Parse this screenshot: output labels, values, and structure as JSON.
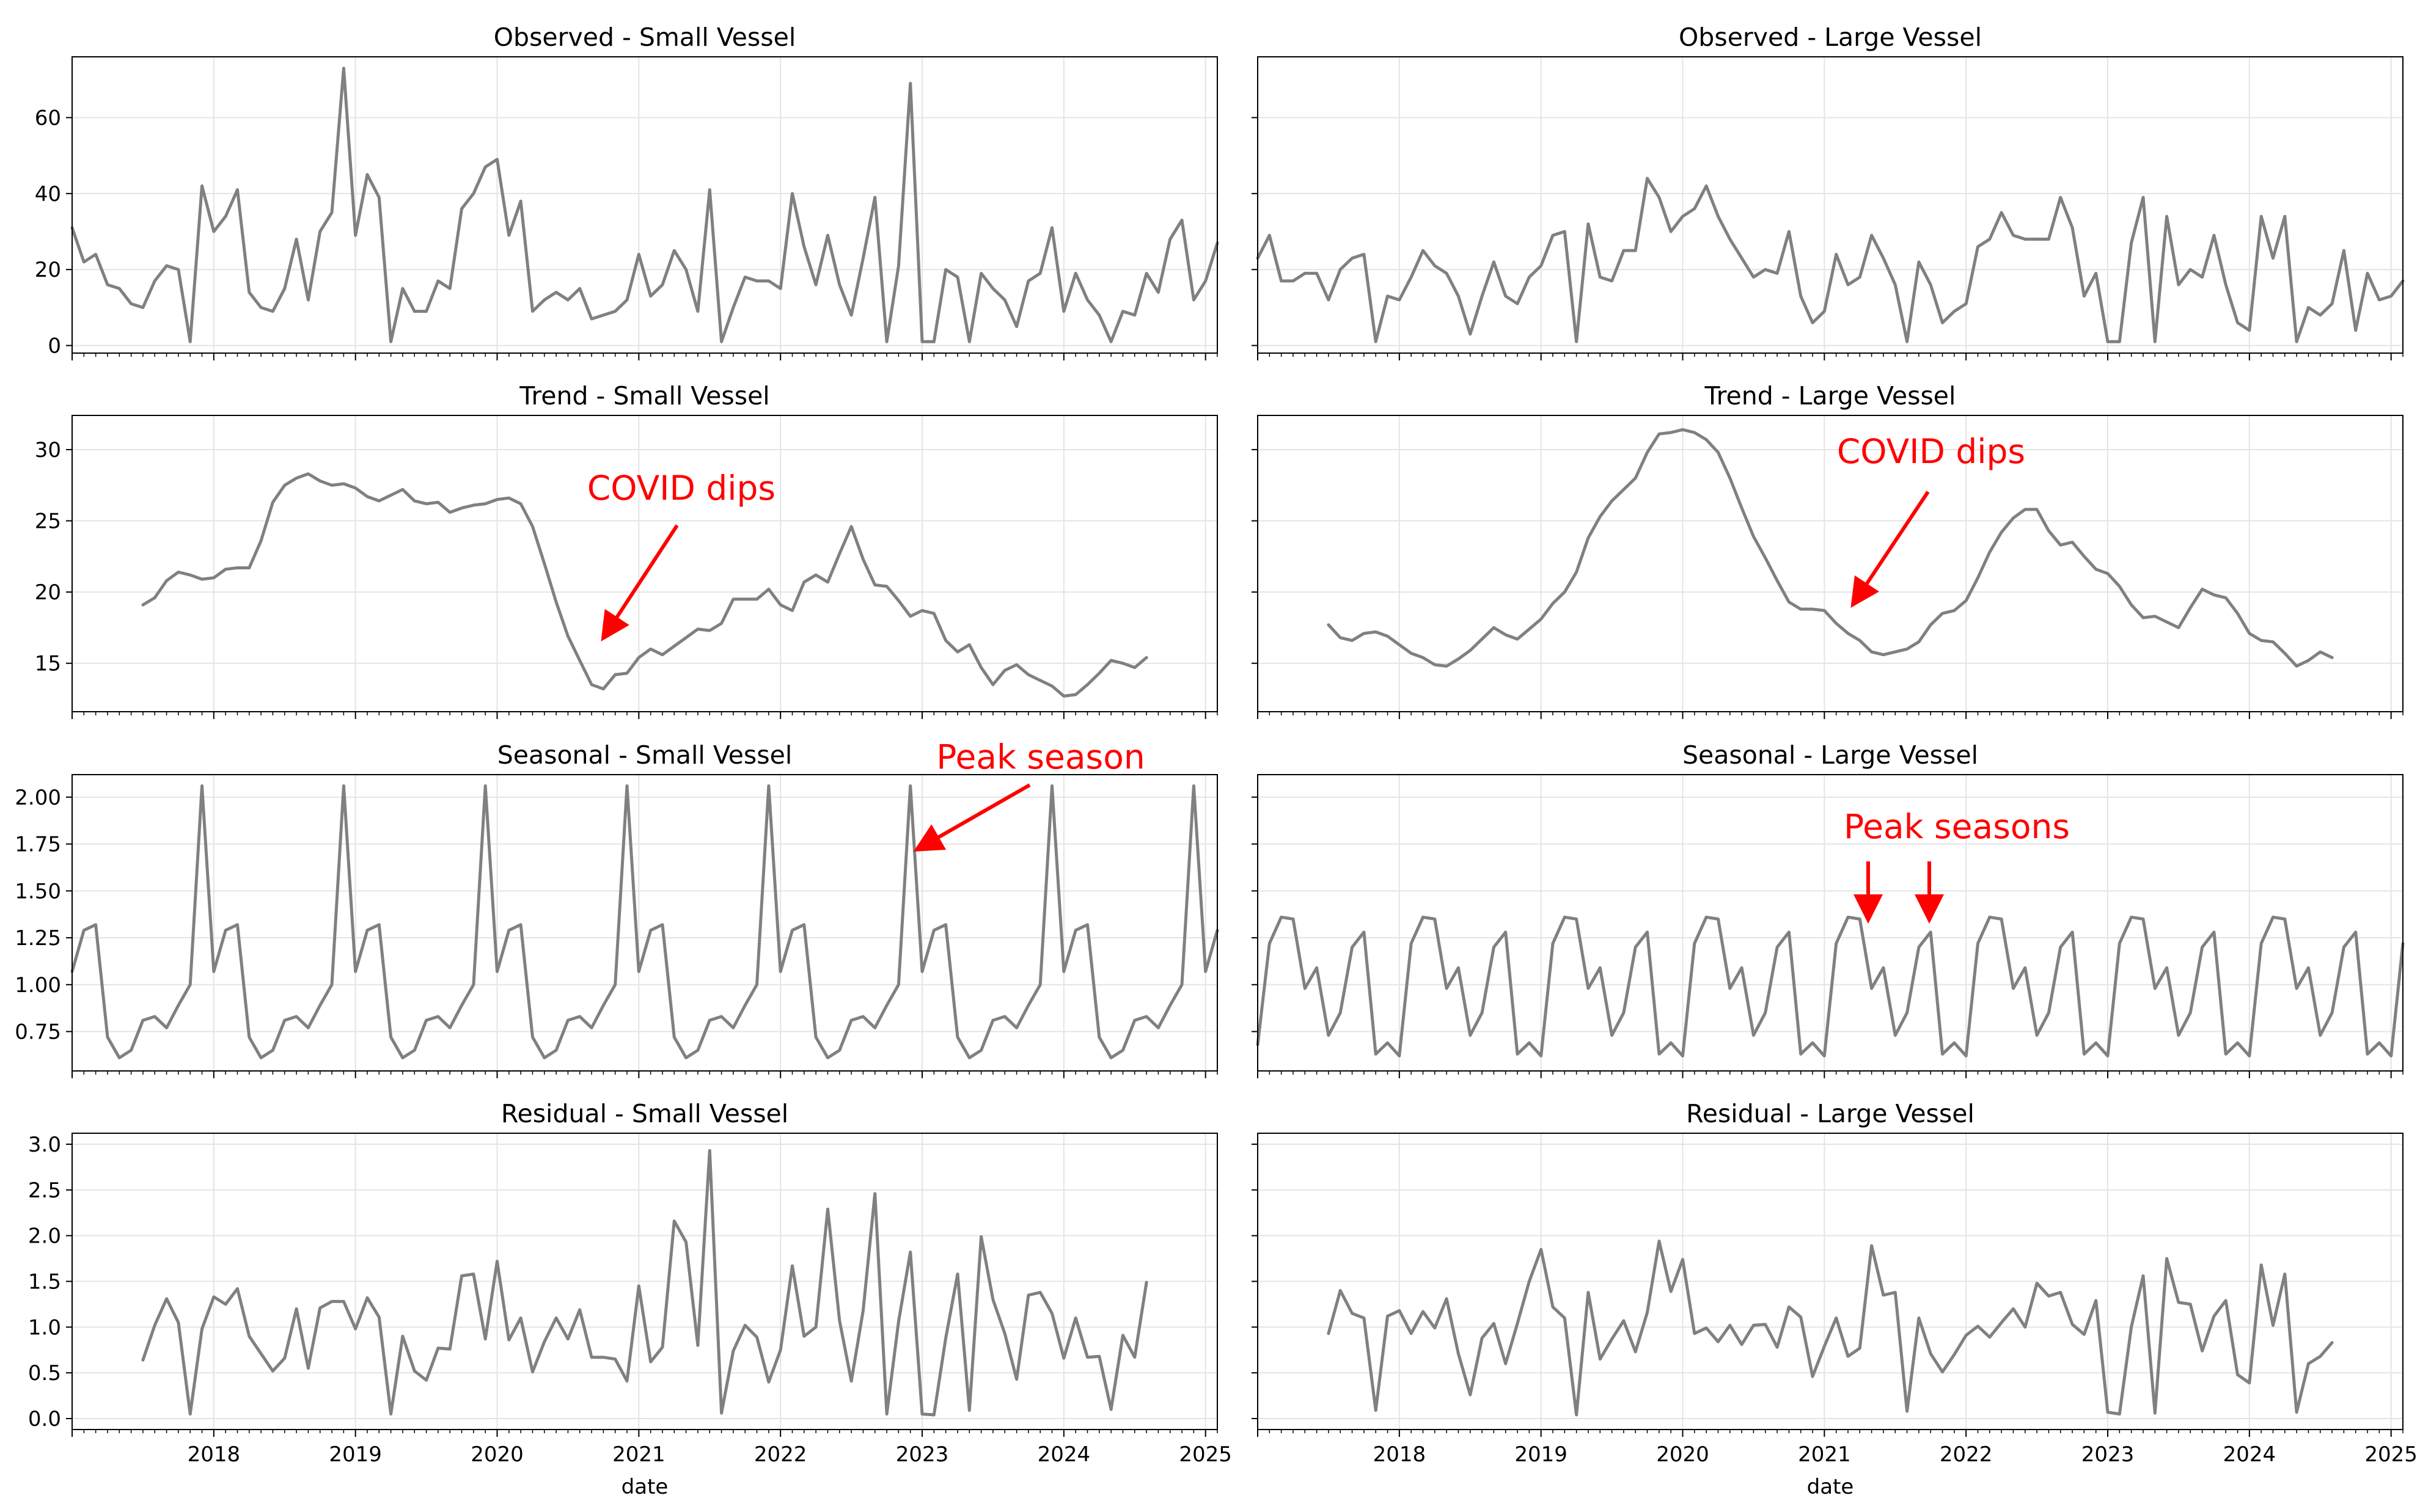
{
  "chart_data": [
    {
      "id": "obs-small",
      "type": "line",
      "title": "Observed - Small Vessel",
      "xlabel": "",
      "ylim": [
        -2,
        76
      ],
      "yticks": [
        0,
        20,
        40,
        60
      ],
      "x_start": "2017-01",
      "x_end": "2025-02",
      "freq": "monthly",
      "series_start": "2017-01",
      "values": [
        31,
        22,
        24,
        16,
        15,
        11,
        10,
        17,
        21,
        20,
        1,
        42,
        30,
        34,
        41,
        14,
        10,
        9,
        15,
        28,
        12,
        30,
        35,
        73,
        29,
        45,
        39,
        1,
        15,
        9,
        9,
        17,
        15,
        36,
        40,
        47,
        49,
        29,
        38,
        9,
        12,
        14,
        12,
        15,
        7,
        8,
        9,
        12,
        24,
        13,
        16,
        25,
        20,
        9,
        41,
        1,
        10,
        18,
        17,
        17,
        15,
        40,
        26,
        16,
        29,
        16,
        8,
        23,
        39,
        1,
        21,
        69,
        1,
        1,
        20,
        18,
        1,
        19,
        15,
        12,
        5,
        17,
        19,
        31,
        9,
        19,
        12,
        8,
        1,
        9,
        8,
        19,
        14,
        28,
        33,
        12,
        17,
        27
      ]
    },
    {
      "id": "obs-large",
      "type": "line",
      "title": "Observed - Large Vessel",
      "xlabel": "",
      "ylim": [
        -2,
        76
      ],
      "yticks": [
        0,
        20,
        40,
        60
      ],
      "x_start": "2017-01",
      "x_end": "2025-02",
      "freq": "monthly",
      "series_start": "2017-01",
      "values": [
        23,
        29,
        17,
        17,
        19,
        19,
        12,
        20,
        23,
        24,
        1,
        13,
        12,
        18,
        25,
        21,
        19,
        13,
        3,
        13,
        22,
        13,
        11,
        18,
        21,
        29,
        30,
        1,
        32,
        18,
        17,
        25,
        25,
        44,
        39,
        30,
        34,
        36,
        42,
        34,
        28,
        23,
        18,
        20,
        19,
        30,
        13,
        6,
        9,
        24,
        16,
        18,
        29,
        23,
        16,
        1,
        22,
        16,
        6,
        9,
        11,
        26,
        28,
        35,
        29,
        28,
        28,
        28,
        39,
        31,
        13,
        19,
        1,
        1,
        27,
        39,
        1,
        34,
        16,
        20,
        18,
        29,
        16,
        6,
        4,
        34,
        23,
        34,
        1,
        10,
        8,
        11,
        25,
        4,
        19,
        12,
        13,
        17
      ]
    },
    {
      "id": "trend-small",
      "type": "line",
      "title": "Trend - Small Vessel",
      "xlabel": "",
      "ylim": [
        11.6,
        32.4
      ],
      "yticks": [
        15,
        20,
        25,
        30
      ],
      "x_start": "2017-01",
      "x_end": "2025-02",
      "freq": "monthly",
      "series_start": "2017-07",
      "values": [
        19.1,
        19.6,
        20.8,
        21.4,
        21.2,
        20.9,
        21.0,
        21.6,
        21.7,
        21.7,
        23.6,
        26.3,
        27.5,
        28.0,
        28.3,
        27.8,
        27.5,
        27.6,
        27.3,
        26.7,
        26.4,
        26.8,
        27.2,
        26.4,
        26.2,
        26.3,
        25.6,
        25.9,
        26.1,
        26.2,
        26.5,
        26.6,
        26.2,
        24.6,
        22.0,
        19.3,
        16.9,
        15.2,
        13.5,
        13.2,
        14.2,
        14.3,
        15.4,
        16.0,
        15.6,
        16.2,
        16.8,
        17.4,
        17.3,
        17.8,
        19.5,
        19.5,
        19.5,
        20.2,
        19.1,
        18.7,
        20.7,
        21.2,
        20.7,
        22.7,
        24.6,
        22.3,
        20.5,
        20.4,
        19.4,
        18.3,
        18.7,
        18.5,
        16.6,
        15.8,
        16.3,
        14.7,
        13.5,
        14.5,
        14.9,
        14.2,
        13.8,
        13.4,
        12.7,
        12.8,
        13.5,
        14.3,
        15.2,
        15.0,
        14.7,
        15.4
      ]
    },
    {
      "id": "trend-large",
      "type": "line",
      "title": "Trend - Large Vessel",
      "xlabel": "",
      "ylim": [
        11.6,
        32.4
      ],
      "yticks": [
        15,
        20,
        25,
        30
      ],
      "x_start": "2017-01",
      "x_end": "2025-02",
      "freq": "monthly",
      "series_start": "2017-07",
      "values": [
        17.7,
        16.8,
        16.6,
        17.1,
        17.2,
        16.9,
        16.3,
        15.7,
        15.4,
        14.9,
        14.8,
        15.3,
        15.9,
        16.7,
        17.5,
        17.0,
        16.7,
        17.4,
        18.1,
        19.2,
        20.0,
        21.4,
        23.8,
        25.3,
        26.4,
        27.2,
        28.0,
        29.8,
        31.1,
        31.2,
        31.4,
        31.2,
        30.7,
        29.8,
        28.0,
        25.9,
        23.9,
        22.4,
        20.8,
        19.3,
        18.8,
        18.8,
        18.7,
        17.8,
        17.1,
        16.6,
        15.8,
        15.6,
        15.8,
        16.0,
        16.5,
        17.7,
        18.5,
        18.7,
        19.4,
        21.0,
        22.8,
        24.2,
        25.2,
        25.8,
        25.8,
        24.3,
        23.3,
        23.5,
        22.5,
        21.6,
        21.3,
        20.4,
        19.1,
        18.2,
        18.3,
        17.9,
        17.5,
        18.9,
        20.2,
        19.8,
        19.6,
        18.5,
        17.1,
        16.6,
        16.5,
        15.7,
        14.8,
        15.2,
        15.8,
        15.4
      ]
    },
    {
      "id": "seas-small",
      "type": "line",
      "title": "Seasonal - Small Vessel",
      "xlabel": "",
      "ylim": [
        0.54,
        2.12
      ],
      "yticks": [
        0.75,
        1.0,
        1.25,
        1.5,
        1.75,
        2.0
      ],
      "x_start": "2017-01",
      "x_end": "2025-02",
      "freq": "monthly",
      "series_start": "2017-01",
      "values": [
        1.07,
        1.29,
        1.32,
        0.72,
        0.61,
        0.65,
        0.81,
        0.83,
        0.77,
        0.89,
        1.0,
        2.06,
        1.07,
        1.29,
        1.32,
        0.72,
        0.61,
        0.65,
        0.81,
        0.83,
        0.77,
        0.89,
        1.0,
        2.06,
        1.07,
        1.29,
        1.32,
        0.72,
        0.61,
        0.65,
        0.81,
        0.83,
        0.77,
        0.89,
        1.0,
        2.06,
        1.07,
        1.29,
        1.32,
        0.72,
        0.61,
        0.65,
        0.81,
        0.83,
        0.77,
        0.89,
        1.0,
        2.06,
        1.07,
        1.29,
        1.32,
        0.72,
        0.61,
        0.65,
        0.81,
        0.83,
        0.77,
        0.89,
        1.0,
        2.06,
        1.07,
        1.29,
        1.32,
        0.72,
        0.61,
        0.65,
        0.81,
        0.83,
        0.77,
        0.89,
        1.0,
        2.06,
        1.07,
        1.29,
        1.32,
        0.72,
        0.61,
        0.65,
        0.81,
        0.83,
        0.77,
        0.89,
        1.0,
        2.06,
        1.07,
        1.29,
        1.32,
        0.72,
        0.61,
        0.65,
        0.81,
        0.83,
        0.77,
        0.89,
        1.0,
        2.06,
        1.07,
        1.29
      ]
    },
    {
      "id": "seas-large",
      "type": "line",
      "title": "Seasonal - Large Vessel",
      "xlabel": "",
      "ylim": [
        0.54,
        2.12
      ],
      "yticks": [
        0.75,
        1.0,
        1.25,
        1.5,
        1.75,
        2.0
      ],
      "x_start": "2017-01",
      "x_end": "2025-02",
      "freq": "monthly",
      "series_start": "2017-01",
      "values": [
        0.68,
        1.22,
        1.36,
        1.35,
        0.98,
        1.09,
        0.73,
        0.85,
        1.2,
        1.28,
        0.63,
        0.69,
        0.62,
        1.22,
        1.36,
        1.35,
        0.98,
        1.09,
        0.73,
        0.85,
        1.2,
        1.28,
        0.63,
        0.69,
        0.62,
        1.22,
        1.36,
        1.35,
        0.98,
        1.09,
        0.73,
        0.85,
        1.2,
        1.28,
        0.63,
        0.69,
        0.62,
        1.22,
        1.36,
        1.35,
        0.98,
        1.09,
        0.73,
        0.85,
        1.2,
        1.28,
        0.63,
        0.69,
        0.62,
        1.22,
        1.36,
        1.35,
        0.98,
        1.09,
        0.73,
        0.85,
        1.2,
        1.28,
        0.63,
        0.69,
        0.62,
        1.22,
        1.36,
        1.35,
        0.98,
        1.09,
        0.73,
        0.85,
        1.2,
        1.28,
        0.63,
        0.69,
        0.62,
        1.22,
        1.36,
        1.35,
        0.98,
        1.09,
        0.73,
        0.85,
        1.2,
        1.28,
        0.63,
        0.69,
        0.62,
        1.22,
        1.36,
        1.35,
        0.98,
        1.09,
        0.73,
        0.85,
        1.2,
        1.28,
        0.63,
        0.69,
        0.62,
        1.22
      ]
    },
    {
      "id": "resid-small",
      "type": "line",
      "title": "Residual - Small Vessel",
      "xlabel": "date",
      "ylim": [
        -0.12,
        3.12
      ],
      "yticks": [
        0.0,
        0.5,
        1.0,
        1.5,
        2.0,
        2.5,
        3.0
      ],
      "x_start": "2017-01",
      "x_end": "2025-02",
      "freq": "monthly",
      "series_start": "2017-07",
      "values": [
        0.64,
        1.02,
        1.31,
        1.05,
        0.05,
        0.98,
        1.33,
        1.25,
        1.42,
        0.9,
        0.71,
        0.52,
        0.66,
        1.2,
        0.55,
        1.21,
        1.28,
        1.28,
        0.98,
        1.32,
        1.11,
        0.05,
        0.9,
        0.52,
        0.42,
        0.77,
        0.76,
        1.56,
        1.58,
        0.87,
        1.72,
        0.86,
        1.1,
        0.51,
        0.84,
        1.1,
        0.87,
        1.19,
        0.67,
        0.67,
        0.65,
        0.41,
        1.45,
        0.62,
        0.78,
        2.16,
        1.93,
        0.8,
        2.93,
        0.06,
        0.74,
        1.02,
        0.89,
        0.4,
        0.75,
        1.67,
        0.9,
        1.0,
        2.29,
        1.07,
        0.41,
        1.18,
        2.46,
        0.05,
        1.06,
        1.82,
        0.05,
        0.04,
        0.88,
        1.58,
        0.09,
        1.99,
        1.3,
        0.93,
        0.43,
        1.35,
        1.38,
        1.15,
        0.66,
        1.1,
        0.67,
        0.68,
        0.1,
        0.91,
        0.67,
        1.49
      ]
    },
    {
      "id": "resid-large",
      "type": "line",
      "title": "Residual - Large Vessel",
      "xlabel": "date",
      "ylim": [
        -0.12,
        3.12
      ],
      "yticks": [
        0.0,
        0.5,
        1.0,
        1.5,
        2.0,
        2.5,
        3.0
      ],
      "x_start": "2017-01",
      "x_end": "2025-02",
      "freq": "monthly",
      "series_start": "2017-07",
      "values": [
        0.93,
        1.4,
        1.15,
        1.1,
        0.09,
        1.12,
        1.18,
        0.93,
        1.17,
        0.99,
        1.31,
        0.71,
        0.26,
        0.88,
        1.04,
        0.6,
        1.04,
        1.5,
        1.85,
        1.22,
        1.1,
        0.04,
        1.38,
        0.65,
        0.87,
        1.07,
        0.73,
        1.16,
        1.94,
        1.39,
        1.74,
        0.93,
        0.99,
        0.84,
        1.02,
        0.81,
        1.02,
        1.03,
        0.78,
        1.22,
        1.11,
        0.46,
        0.79,
        1.1,
        0.68,
        0.77,
        1.89,
        1.35,
        1.38,
        0.08,
        1.1,
        0.71,
        0.51,
        0.7,
        0.91,
        1.01,
        0.89,
        1.05,
        1.2,
        1.0,
        1.48,
        1.34,
        1.38,
        1.03,
        0.92,
        1.29,
        0.07,
        0.05,
        1.0,
        1.56,
        0.06,
        1.75,
        1.27,
        1.25,
        0.74,
        1.12,
        1.29,
        0.48,
        0.39,
        1.68,
        1.02,
        1.58,
        0.07,
        0.6,
        0.68,
        0.83
      ]
    }
  ],
  "x_ticks": [
    "2018",
    "2019",
    "2020",
    "2021",
    "2022",
    "2023",
    "2024",
    "2025"
  ],
  "annotations": {
    "covid_small": "COVID dips",
    "covid_large": "COVID dips",
    "peak_small": "Peak season",
    "peak_large": "Peak seasons"
  },
  "colors": {
    "line": "#808080",
    "annotation": "#ff0000",
    "grid": "#e4e4e4",
    "axis": "#000000"
  }
}
